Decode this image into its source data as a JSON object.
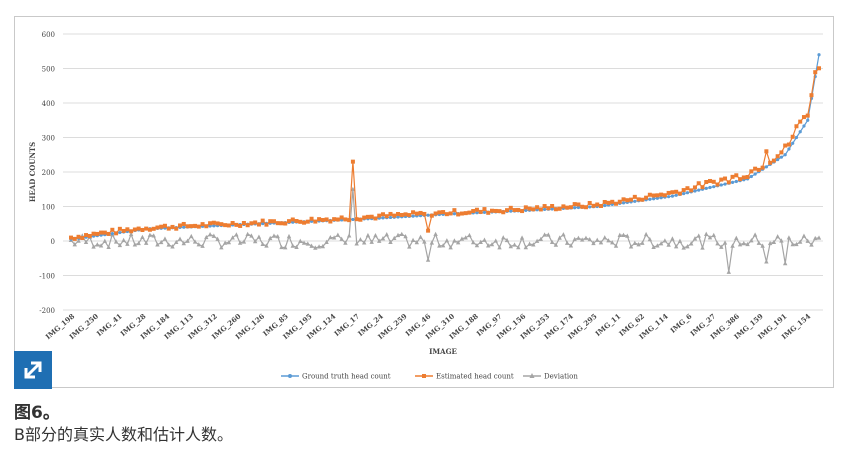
{
  "caption": {
    "title": "图6。",
    "description": "B部分的真实人数和估计人数。"
  },
  "icons": {
    "expand": "expand-icon"
  },
  "colors": {
    "ground_truth": "#5b9bd5",
    "estimated": "#ed7d31",
    "deviation": "#a5a5a5",
    "accent": "#1f6fb3"
  },
  "chart_data": {
    "type": "line",
    "ylabel": "HEAD COUNTS",
    "xlabel": "IMAGE",
    "ylim": [
      -200,
      600
    ],
    "yticks": [
      -200,
      -100,
      0,
      100,
      200,
      300,
      400,
      500,
      600
    ],
    "grid": true,
    "legend_position": "bottom",
    "n_points": 200,
    "x_tick_labels": [
      "IMG_198",
      "IMG_250",
      "IMG_41",
      "IMG_28",
      "IMG_184",
      "IMG_113",
      "IMG_312",
      "IMG_260",
      "IMG_126",
      "IMG_85",
      "IMG_195",
      "IMG_124",
      "IMG_17",
      "IMG_24",
      "IMG_259",
      "IMG_46",
      "IMG_310",
      "IMG_188",
      "IMG_97",
      "IMG_156",
      "IMG_253",
      "IMG_174",
      "IMG_295",
      "IMG_11",
      "IMG_62",
      "IMG_114",
      "IMG_6",
      "IMG_27",
      "IMG_386",
      "IMG_159",
      "IMG_191",
      "IMG_154"
    ],
    "series": [
      {
        "name": "Ground truth head count",
        "color": "#5b9bd5",
        "anchors": [
          [
            0,
            5
          ],
          [
            10,
            20
          ],
          [
            20,
            35
          ],
          [
            40,
            45
          ],
          [
            60,
            55
          ],
          [
            80,
            65
          ],
          [
            100,
            78
          ],
          [
            120,
            88
          ],
          [
            140,
            100
          ],
          [
            160,
            130
          ],
          [
            180,
            180
          ],
          [
            190,
            250
          ],
          [
            196,
            350
          ],
          [
            199,
            540
          ]
        ]
      },
      {
        "name": "Estimated head count",
        "color": "#ed7d31",
        "anchors": [
          [
            0,
            10
          ],
          [
            10,
            25
          ],
          [
            20,
            38
          ],
          [
            40,
            48
          ],
          [
            60,
            58
          ],
          [
            80,
            70
          ],
          [
            100,
            82
          ],
          [
            120,
            92
          ],
          [
            140,
            105
          ],
          [
            160,
            140
          ],
          [
            180,
            195
          ],
          [
            190,
            265
          ],
          [
            196,
            380
          ],
          [
            199,
            520
          ]
        ],
        "spikes": [
          [
            75,
            230
          ],
          [
            95,
            30
          ],
          [
            175,
            170
          ],
          [
            185,
            260
          ]
        ]
      },
      {
        "name": "Deviation",
        "color": "#a5a5a5",
        "baseline": 0,
        "spikes": [
          [
            75,
            150
          ],
          [
            95,
            -55
          ],
          [
            175,
            -90
          ],
          [
            185,
            -60
          ],
          [
            190,
            -65
          ]
        ]
      }
    ]
  }
}
